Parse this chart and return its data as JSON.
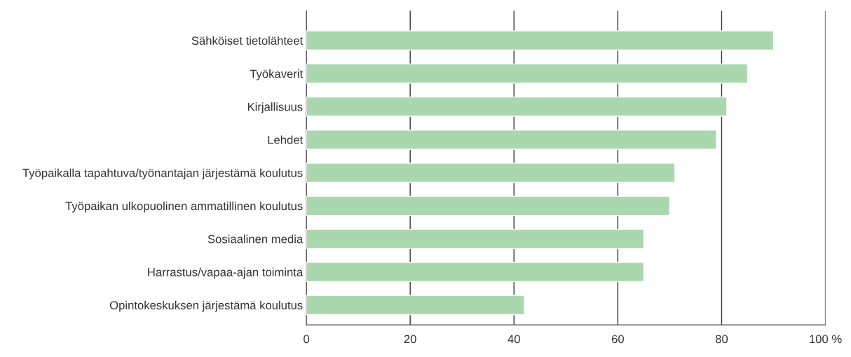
{
  "chart_data": {
    "type": "bar",
    "orientation": "horizontal",
    "categories": [
      "Sähköiset tietolähteet",
      "Työkaverit",
      "Kirjallisuus",
      "Lehdet",
      "Työpaikalla tapahtuva/työnantajan järjestämä koulutus",
      "Työpaikan ulkopuolinen ammatillinen koulutus",
      "Sosiaalinen media",
      "Harrastus/vapaa-ajan toiminta",
      "Opintokeskuksen järjestämä koulutus"
    ],
    "values": [
      90,
      85,
      81,
      79,
      71,
      70,
      65,
      65,
      42
    ],
    "color": "#abd7af",
    "xlim": [
      0,
      100
    ],
    "xticks": [
      0,
      20,
      40,
      60,
      80,
      {
        "value": 100,
        "label": "100 %"
      }
    ],
    "grid": "x",
    "legend": false
  }
}
